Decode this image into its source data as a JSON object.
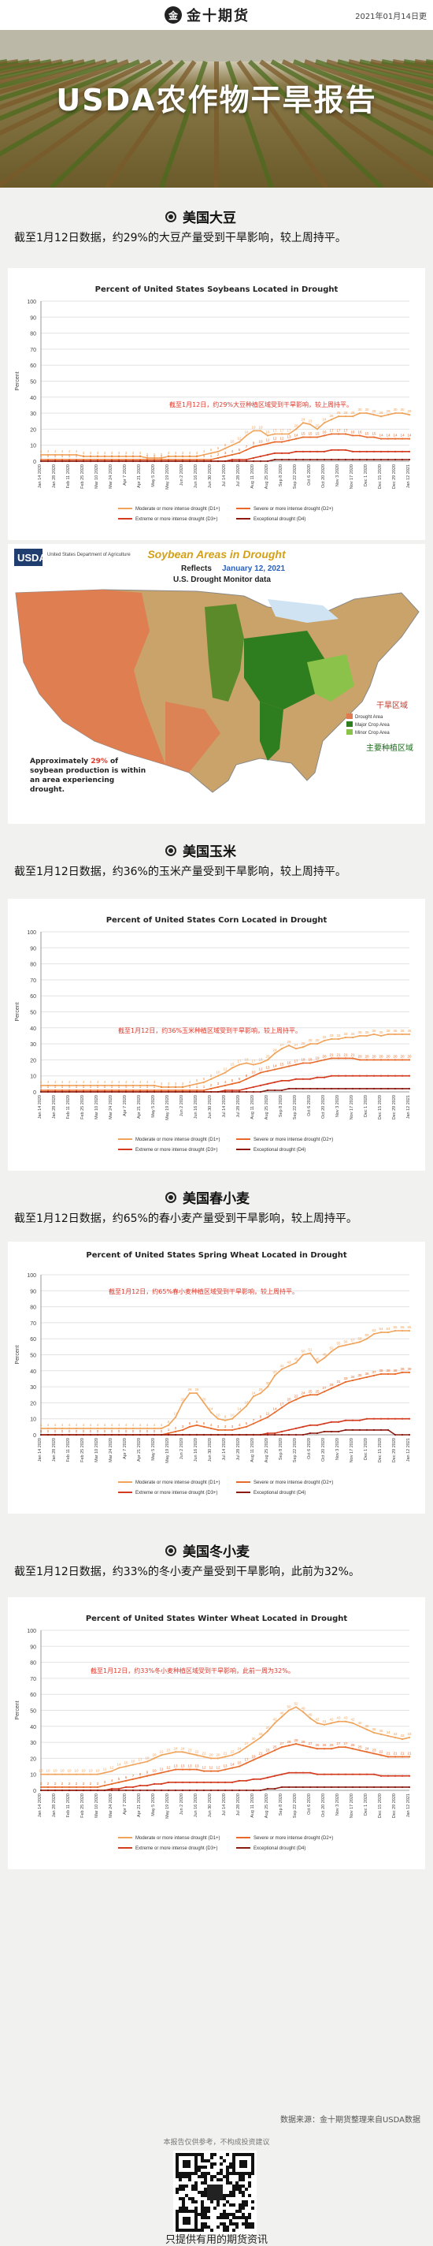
{
  "header": {
    "logo_text": "金十期货",
    "logo_badge": "金",
    "date": "2021年01月14日更"
  },
  "banner": {
    "title": "USDA农作物干旱报告"
  },
  "sections": [
    {
      "title": "美国大豆",
      "text": "截至1月12日数据，约29%的大豆产量受到干旱影响，较上周持平。"
    },
    {
      "title": "美国玉米",
      "text": "截至1月12日数据，约36%的玉米产量受到干旱影响，较上周持平。"
    },
    {
      "title": "美国春小麦",
      "text": "截至1月12日数据，约65%的春小麦产量受到干旱影响，较上周持平。"
    },
    {
      "title": "美国冬小麦",
      "text": "截至1月12日数据，约33%的冬小麦产量受到干旱影响，此前为32%。"
    }
  ],
  "map": {
    "title": "Soybean Areas in Drought",
    "reflects_label": "Reflects",
    "reflects_date": "January 12, 2021",
    "subtitle": "U.S. Drought Monitor data",
    "usda_logo": "USDA",
    "usda_sub": "United States Department of Agriculture",
    "note_prefix": "Approximately ",
    "note_pct": "29%",
    "note_suffix": " of soybean production is within an area experiencing drought.",
    "legend": [
      {
        "label": "Drought Area",
        "color": "#e07a4f"
      },
      {
        "label": "Major Crop Area",
        "color": "#2e7d1e"
      },
      {
        "label": "Minor Crop Area",
        "color": "#8bc34a"
      }
    ],
    "cn_labels": {
      "drought": "干旱区域",
      "crop": "主要种植区域"
    },
    "colors": {
      "drought": "#e07a4f",
      "base": "#c9a36a",
      "major": "#2e7d1e",
      "minor": "#8bc34a",
      "water": "#cfe3f3"
    }
  },
  "charts": [
    {
      "id": "soy",
      "title": "Percent of United States Soybeans Located in Drought",
      "annotation": "截至1月12日，约29%大豆种植区域受到干旱影响，较上周持平。"
    },
    {
      "id": "corn",
      "title": "Percent of United States Corn Located in Drought",
      "annotation": "截至1月12日，约36%玉米种植区域受到干旱影响，较上周持平。"
    },
    {
      "id": "spring",
      "title": "Percent of United States Spring Wheat Located in Drought",
      "annotation": "截至1月12日，约65%春小麦种植区域受到干旱影响，较上周持平。"
    },
    {
      "id": "winter",
      "title": "Percent of United States Winter Wheat Located in Drought",
      "annotation": "截至1月12日，约33%冬小麦种植区域受到干旱影响，此前一周为32%。"
    }
  ],
  "legend_labels": [
    "Moderate or more intense drought (D1+)",
    "Severe or more intense drought (D2+)",
    "Extreme or more intense drought (D3+)",
    "Exceptional drought (D4)"
  ],
  "legend_colors": [
    "#f0a35a",
    "#e76a2a",
    "#d43a1e",
    "#8b1a10"
  ],
  "axis": {
    "ylabel": "Percent",
    "yticks": [
      0,
      10,
      20,
      30,
      40,
      50,
      60,
      70,
      80,
      90,
      100
    ]
  },
  "chart_data": [
    {
      "type": "line",
      "title": "Percent of United States Soybeans Located in Drought",
      "ylabel": "Percent",
      "ylim": [
        0,
        100
      ],
      "x_start": "Jan 14 2020",
      "x_end": "Jan 12 2021",
      "series": [
        {
          "name": "Moderate or more intense drought (D1+)",
          "values": [
            4,
            4,
            4,
            4,
            4,
            4,
            3,
            3,
            3,
            3,
            3,
            3,
            3,
            3,
            3,
            2,
            2,
            2,
            3,
            3,
            3,
            3,
            3,
            4,
            5,
            6,
            8,
            10,
            12,
            16,
            19,
            19,
            16,
            17,
            17,
            17,
            20,
            24,
            23,
            20,
            24,
            26,
            28,
            28,
            28,
            30,
            30,
            29,
            28,
            29,
            30,
            30,
            29
          ]
        },
        {
          "name": "Severe or more intense drought (D2+)",
          "values": [
            1,
            1,
            1,
            1,
            1,
            1,
            1,
            1,
            1,
            1,
            1,
            1,
            1,
            1,
            1,
            1,
            1,
            1,
            1,
            1,
            1,
            1,
            1,
            1,
            1,
            2,
            3,
            4,
            5,
            7,
            9,
            10,
            11,
            12,
            12,
            13,
            14,
            15,
            15,
            15,
            16,
            17,
            17,
            17,
            16,
            16,
            15,
            15,
            14,
            14,
            14,
            14,
            14
          ]
        },
        {
          "name": "Extreme or more intense drought (D3+)",
          "values": [
            0,
            0,
            0,
            0,
            0,
            0,
            0,
            0,
            0,
            0,
            0,
            0,
            0,
            0,
            0,
            0,
            0,
            0,
            0,
            0,
            0,
            0,
            0,
            0,
            0,
            0,
            0,
            1,
            1,
            1,
            2,
            3,
            4,
            5,
            5,
            5,
            6,
            6,
            6,
            6,
            6,
            7,
            7,
            7,
            6,
            6,
            6,
            6,
            6,
            6,
            6,
            6,
            6
          ]
        },
        {
          "name": "Exceptional drought (D4)",
          "values": [
            0,
            0,
            0,
            0,
            0,
            0,
            0,
            0,
            0,
            0,
            0,
            0,
            0,
            0,
            0,
            0,
            0,
            0,
            0,
            0,
            0,
            0,
            0,
            0,
            0,
            0,
            0,
            0,
            0,
            0,
            0,
            0,
            0,
            1,
            1,
            1,
            1,
            1,
            1,
            1,
            1,
            1,
            1,
            1,
            1,
            1,
            1,
            1,
            1,
            1,
            1,
            1,
            1
          ]
        }
      ]
    },
    {
      "type": "line",
      "title": "Percent of United States Corn Located in Drought",
      "ylabel": "Percent",
      "ylim": [
        0,
        100
      ],
      "x_start": "Jan 14 2020",
      "x_end": "Jan 12 2021",
      "series": [
        {
          "name": "Moderate or more intense drought (D1+)",
          "values": [
            4,
            4,
            4,
            4,
            4,
            4,
            4,
            4,
            4,
            4,
            4,
            4,
            4,
            4,
            4,
            4,
            4,
            3,
            3,
            3,
            3,
            4,
            5,
            6,
            8,
            10,
            12,
            15,
            17,
            18,
            17,
            18,
            20,
            24,
            27,
            29,
            27,
            28,
            30,
            30,
            32,
            33,
            33,
            34,
            34,
            35,
            35,
            36,
            35,
            36,
            36,
            36,
            36
          ]
        },
        {
          "name": "Severe or more intense drought (D2+)",
          "values": [
            1,
            1,
            1,
            1,
            1,
            1,
            1,
            1,
            1,
            1,
            1,
            1,
            1,
            1,
            1,
            1,
            1,
            1,
            1,
            1,
            1,
            1,
            1,
            1,
            2,
            3,
            4,
            5,
            6,
            8,
            10,
            12,
            13,
            14,
            15,
            16,
            17,
            18,
            18,
            19,
            20,
            21,
            21,
            21,
            21,
            20,
            20,
            20,
            20,
            20,
            20,
            20,
            20
          ]
        },
        {
          "name": "Extreme or more intense drought (D3+)",
          "values": [
            0,
            0,
            0,
            0,
            0,
            0,
            0,
            0,
            0,
            0,
            0,
            0,
            0,
            0,
            0,
            0,
            0,
            0,
            0,
            0,
            0,
            0,
            0,
            0,
            0,
            0,
            1,
            1,
            1,
            2,
            3,
            4,
            5,
            6,
            7,
            7,
            8,
            8,
            8,
            9,
            9,
            10,
            10,
            10,
            10,
            10,
            10,
            10,
            10,
            10,
            10,
            10,
            10
          ]
        },
        {
          "name": "Exceptional drought (D4)",
          "values": [
            0,
            0,
            0,
            0,
            0,
            0,
            0,
            0,
            0,
            0,
            0,
            0,
            0,
            0,
            0,
            0,
            0,
            0,
            0,
            0,
            0,
            0,
            0,
            0,
            0,
            0,
            0,
            0,
            0,
            0,
            0,
            0,
            1,
            1,
            1,
            2,
            2,
            2,
            2,
            2,
            2,
            2,
            2,
            2,
            2,
            2,
            2,
            2,
            2,
            2,
            2,
            2,
            2
          ]
        }
      ]
    },
    {
      "type": "line",
      "title": "Percent of United States Spring Wheat Located in Drought",
      "ylabel": "Percent",
      "ylim": [
        0,
        100
      ],
      "x_start": "Jan 14 2020",
      "x_end": "Jan 12 2021",
      "series": [
        {
          "name": "Moderate or more intense drought (D1+)",
          "values": [
            4,
            4,
            4,
            4,
            4,
            4,
            4,
            4,
            4,
            4,
            4,
            4,
            4,
            4,
            4,
            4,
            4,
            4,
            6,
            11,
            20,
            26,
            26,
            20,
            14,
            10,
            9,
            10,
            14,
            18,
            24,
            26,
            30,
            37,
            41,
            43,
            45,
            50,
            51,
            45,
            48,
            52,
            55,
            56,
            57,
            58,
            60,
            63,
            64,
            64,
            65,
            65,
            65
          ]
        },
        {
          "name": "Severe or more intense drought (D2+)",
          "values": [
            0,
            0,
            0,
            0,
            0,
            0,
            0,
            0,
            0,
            0,
            0,
            0,
            0,
            0,
            0,
            0,
            0,
            0,
            1,
            2,
            3,
            5,
            6,
            5,
            4,
            3,
            3,
            3,
            4,
            5,
            7,
            9,
            11,
            14,
            17,
            20,
            22,
            24,
            25,
            25,
            27,
            29,
            31,
            33,
            34,
            35,
            36,
            37,
            38,
            38,
            38,
            39,
            39
          ]
        },
        {
          "name": "Extreme or more intense drought (D3+)",
          "values": [
            0,
            0,
            0,
            0,
            0,
            0,
            0,
            0,
            0,
            0,
            0,
            0,
            0,
            0,
            0,
            0,
            0,
            0,
            0,
            0,
            0,
            0,
            0,
            0,
            0,
            0,
            0,
            0,
            0,
            0,
            0,
            0,
            1,
            1,
            2,
            3,
            4,
            5,
            6,
            6,
            7,
            8,
            8,
            9,
            9,
            9,
            10,
            10,
            10,
            10,
            10,
            10,
            10
          ]
        },
        {
          "name": "Exceptional drought (D4)",
          "values": [
            0,
            0,
            0,
            0,
            0,
            0,
            0,
            0,
            0,
            0,
            0,
            0,
            0,
            0,
            0,
            0,
            0,
            0,
            0,
            0,
            0,
            0,
            0,
            0,
            0,
            0,
            0,
            0,
            0,
            0,
            0,
            0,
            0,
            0,
            0,
            0,
            0,
            0,
            1,
            1,
            2,
            2,
            2,
            3,
            3,
            3,
            3,
            3,
            3,
            3,
            0,
            0,
            0
          ]
        }
      ]
    },
    {
      "type": "line",
      "title": "Percent of United States Winter Wheat Located in Drought",
      "ylabel": "Percent",
      "ylim": [
        0,
        100
      ],
      "x_start": "Jan 14 2020",
      "x_end": "Jan 12 2021",
      "series": [
        {
          "name": "Moderate or more intense drought (D1+)",
          "values": [
            10,
            10,
            10,
            10,
            10,
            10,
            10,
            10,
            10,
            11,
            12,
            14,
            15,
            16,
            17,
            18,
            20,
            22,
            23,
            24,
            24,
            23,
            22,
            21,
            20,
            20,
            21,
            22,
            24,
            27,
            30,
            33,
            37,
            42,
            46,
            50,
            52,
            49,
            45,
            42,
            41,
            42,
            43,
            43,
            42,
            40,
            38,
            36,
            35,
            34,
            33,
            32,
            33
          ]
        },
        {
          "name": "Severe or more intense drought (D2+)",
          "values": [
            2,
            2,
            2,
            2,
            2,
            2,
            2,
            2,
            2,
            3,
            4,
            5,
            6,
            7,
            8,
            9,
            10,
            11,
            12,
            13,
            13,
            13,
            13,
            12,
            12,
            12,
            13,
            14,
            15,
            17,
            19,
            21,
            23,
            25,
            27,
            28,
            29,
            28,
            27,
            26,
            26,
            26,
            27,
            27,
            26,
            25,
            24,
            23,
            22,
            21,
            21,
            21,
            21
          ]
        },
        {
          "name": "Extreme or more intense drought (D3+)",
          "values": [
            0,
            0,
            0,
            0,
            0,
            0,
            0,
            0,
            0,
            0,
            1,
            1,
            2,
            2,
            3,
            3,
            4,
            4,
            5,
            5,
            5,
            5,
            5,
            5,
            5,
            5,
            5,
            5,
            6,
            6,
            7,
            7,
            8,
            9,
            10,
            11,
            11,
            11,
            11,
            10,
            10,
            10,
            10,
            10,
            10,
            10,
            10,
            10,
            9,
            9,
            9,
            9,
            9
          ]
        },
        {
          "name": "Exceptional drought (D4)",
          "values": [
            0,
            0,
            0,
            0,
            0,
            0,
            0,
            0,
            0,
            0,
            0,
            0,
            0,
            0,
            0,
            0,
            0,
            0,
            0,
            0,
            0,
            0,
            0,
            0,
            0,
            0,
            0,
            0,
            0,
            0,
            0,
            0,
            1,
            1,
            2,
            2,
            2,
            2,
            2,
            2,
            2,
            2,
            2,
            2,
            2,
            2,
            2,
            2,
            2,
            2,
            2,
            2,
            2
          ]
        }
      ]
    }
  ],
  "footer": {
    "source": "数据来源：金十期货整理来自USDA数据",
    "disclaimer": "本报告仅供参考，不构成投资建议",
    "qr_label": "只提供有用的期货资讯"
  }
}
